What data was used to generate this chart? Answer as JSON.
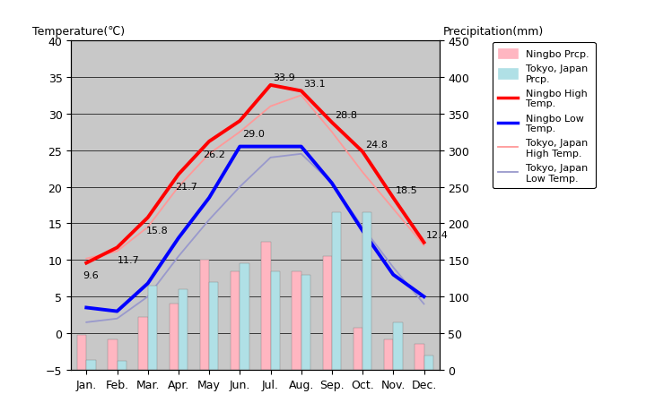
{
  "months": [
    "Jan.",
    "Feb.",
    "Mar.",
    "Apr.",
    "May",
    "Jun.",
    "Jul.",
    "Aug.",
    "Sep.",
    "Oct.",
    "Nov.",
    "Dec."
  ],
  "ningbo_high": [
    9.6,
    11.7,
    15.8,
    21.7,
    26.2,
    29.0,
    33.9,
    33.1,
    28.8,
    24.8,
    18.5,
    12.4
  ],
  "ningbo_low": [
    3.5,
    3.0,
    6.8,
    13.0,
    18.5,
    25.5,
    25.5,
    25.5,
    20.5,
    14.0,
    8.0,
    5.0
  ],
  "tokyo_high": [
    10.2,
    11.2,
    14.5,
    20.0,
    24.5,
    27.5,
    31.0,
    32.5,
    27.5,
    22.0,
    17.0,
    12.0
  ],
  "tokyo_low": [
    1.5,
    2.0,
    5.0,
    10.5,
    15.5,
    20.0,
    24.0,
    24.5,
    20.5,
    14.5,
    9.0,
    4.0
  ],
  "ningbo_prcp_mm": [
    48,
    42,
    72,
    90,
    150,
    135,
    175,
    135,
    155,
    58,
    42,
    36
  ],
  "tokyo_prcp_mm": [
    14,
    12,
    115,
    110,
    120,
    145,
    135,
    130,
    215,
    215,
    65,
    20
  ],
  "temp_ylim": [
    -5,
    40
  ],
  "prcp_ylim": [
    0,
    450
  ],
  "bg_color": "#c8c8c8",
  "ningbo_high_color": "#ff0000",
  "ningbo_low_color": "#0000ff",
  "tokyo_high_color": "#ff9999",
  "tokyo_low_color": "#9999cc",
  "ningbo_prcp_color": "#ffb6c1",
  "tokyo_prcp_color": "#b0e0e6",
  "title_left": "Temperature(℃)",
  "title_right": "Precipitation(mm)",
  "label_offsets_x": [
    -1,
    0,
    0,
    -1,
    -1,
    0,
    1,
    1,
    1,
    1,
    1,
    1
  ],
  "label_offsets_y": [
    -1,
    -1,
    -1,
    -1,
    -1,
    -1,
    1,
    1,
    1,
    1,
    1,
    1
  ],
  "bar_width": 0.3,
  "figsize": [
    7.2,
    4.6
  ],
  "dpi": 100
}
